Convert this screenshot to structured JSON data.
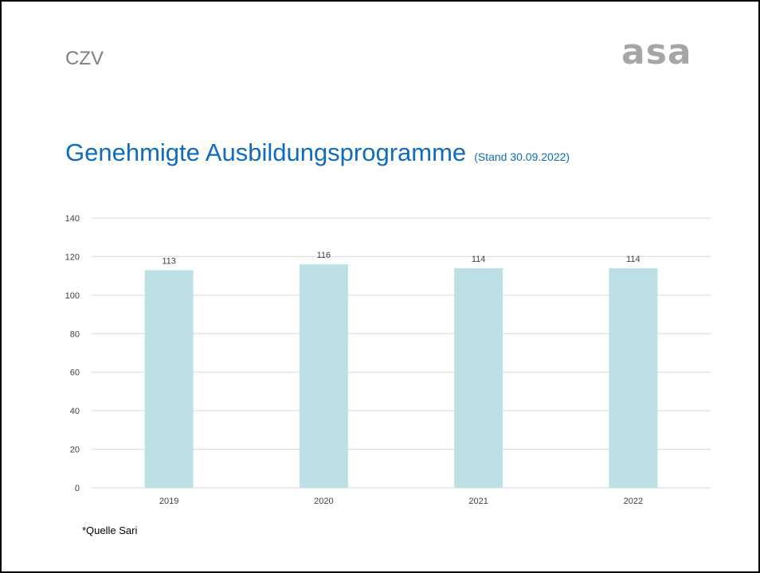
{
  "header": {
    "section_label": "CZV",
    "logo_text": "asa"
  },
  "title": {
    "main": "Genehmigte Ausbildungsprogramme",
    "sub": "(Stand 30.09.2022)"
  },
  "footnote": "*Quelle Sari",
  "colors": {
    "title": "#0f6cbd",
    "bar": "#bce0e4",
    "grid": "#d9d9d9",
    "logo": "#a6a6a6"
  },
  "chart_data": {
    "type": "bar",
    "categories": [
      "2019",
      "2020",
      "2021",
      "2022"
    ],
    "values": [
      113,
      116,
      114,
      114
    ],
    "data_labels": [
      "113",
      "116",
      "114",
      "114"
    ],
    "ylim": [
      0,
      140
    ],
    "y_ticks": [
      0,
      20,
      40,
      60,
      80,
      100,
      120,
      140
    ],
    "grid": true,
    "legend": "none"
  }
}
